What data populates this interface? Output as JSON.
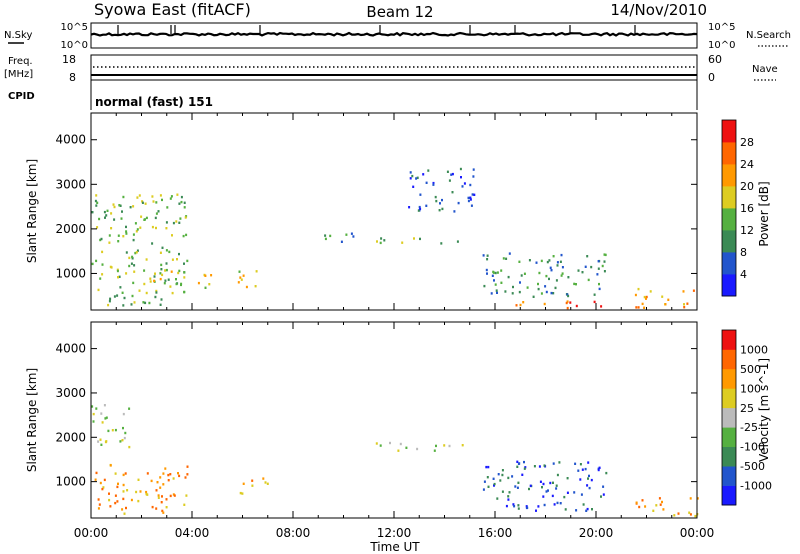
{
  "header": {
    "station": "Syowa East (fitACF)",
    "beam": "Beam 12",
    "date": "14/Nov/2010"
  },
  "top_panels": {
    "nsky_label": "N.Sky",
    "nsky_ticks": [
      "10^5",
      "10^0"
    ],
    "nsearch_label": "N.Search",
    "freq_label": "Freq.",
    "freq_unit": "[MHz]",
    "freq_ticks": [
      "18",
      "8"
    ],
    "nave_label": "Nave",
    "nave_ticks": [
      "60",
      "0"
    ],
    "cpid_label": "CPID",
    "cpid_text": "normal (fast) 151"
  },
  "colors": {
    "power": [
      "#1a1aff",
      "#2255cc",
      "#3b8a55",
      "#55b040",
      "#ddcc22",
      "#ff9900",
      "#ff6600",
      "#ee1111"
    ],
    "velocity": [
      "#1a1aff",
      "#2255cc",
      "#3b8a55",
      "#55b040",
      "#bbbbbb",
      "#ddcc22",
      "#ff9900",
      "#ff6600",
      "#ee1111"
    ]
  },
  "chart_data": [
    {
      "type": "heatmap",
      "panel": "power",
      "xlabel": "",
      "ylabel": "Slant Range [km]",
      "xlim": [
        0,
        24
      ],
      "ylim": [
        180,
        4600
      ],
      "yticks": [
        "1000",
        "2000",
        "3000",
        "4000"
      ],
      "colorbar_label": "Power [dB]",
      "colorbar_ticks": [
        "4",
        "8",
        "12",
        "16",
        "20",
        "24",
        "28"
      ],
      "regions": [
        {
          "t": [
            0,
            3.8
          ],
          "r": [
            300,
            2800
          ],
          "level": 3
        },
        {
          "t": [
            2.0,
            4.8
          ],
          "r": [
            700,
            1100
          ],
          "level": 4
        },
        {
          "t": [
            5.8,
            7.0
          ],
          "r": [
            700,
            1100
          ],
          "level": 4
        },
        {
          "t": [
            9.2,
            10.5
          ],
          "r": [
            1700,
            2000
          ],
          "level": 2
        },
        {
          "t": [
            11.2,
            14.8
          ],
          "r": [
            1700,
            1850
          ],
          "level": 3
        },
        {
          "t": [
            12.5,
            15.2
          ],
          "r": [
            2400,
            3400
          ],
          "level": 1
        },
        {
          "t": [
            15.5,
            20.5
          ],
          "r": [
            500,
            1500
          ],
          "level": 2
        },
        {
          "t": [
            16.0,
            20.5
          ],
          "r": [
            250,
            400
          ],
          "level": 6
        },
        {
          "t": [
            21.5,
            24
          ],
          "r": [
            250,
            700
          ],
          "level": 5
        }
      ]
    },
    {
      "type": "heatmap",
      "panel": "velocity",
      "xlabel": "Time UT",
      "ylabel": "Slant Range [km]",
      "xlim": [
        0,
        24
      ],
      "ylim": [
        180,
        4600
      ],
      "xticks": [
        "00:00",
        "04:00",
        "08:00",
        "12:00",
        "16:00",
        "20:00",
        "00:00"
      ],
      "yticks": [
        "1000",
        "2000",
        "3000",
        "4000"
      ],
      "colorbar_label": "Velocity [m s^-1]",
      "colorbar_ticks": [
        "1000",
        "500",
        "100",
        "25",
        "-25",
        "-100",
        "-500",
        "-1000"
      ],
      "regions": [
        {
          "t": [
            0,
            3.8
          ],
          "r": [
            300,
            1400
          ],
          "level": 6
        },
        {
          "t": [
            0,
            1.5
          ],
          "r": [
            1800,
            2800
          ],
          "level": 4
        },
        {
          "t": [
            5.8,
            7.0
          ],
          "r": [
            700,
            1100
          ],
          "level": 6
        },
        {
          "t": [
            11.2,
            14.8
          ],
          "r": [
            1700,
            1900
          ],
          "level": 4
        },
        {
          "t": [
            15.5,
            20.5
          ],
          "r": [
            350,
            1500
          ],
          "level": 1
        },
        {
          "t": [
            21.5,
            24
          ],
          "r": [
            250,
            700
          ],
          "level": 6
        }
      ]
    }
  ]
}
